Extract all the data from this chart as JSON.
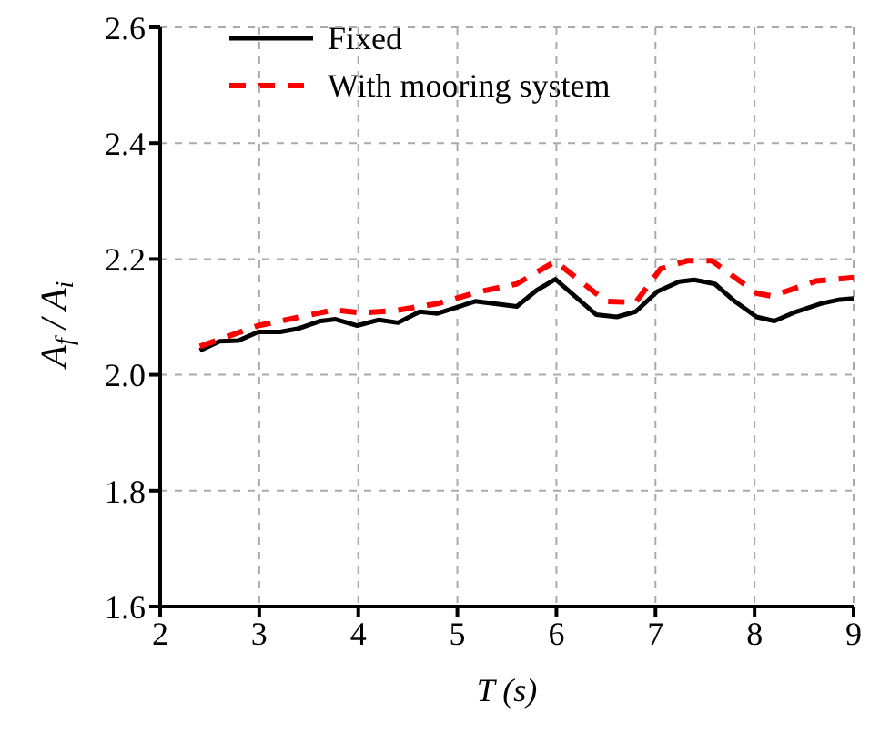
{
  "chart_data": {
    "type": "line",
    "xlabel": "T (s)",
    "ylabel": "A$_{f}$ / A$_{i}$",
    "xlim": [
      2,
      9
    ],
    "xticks": [
      2,
      3,
      4,
      5,
      6,
      7,
      8,
      9
    ],
    "ylim": [
      1.6,
      2.6
    ],
    "yticks": [
      1.6,
      1.8,
      {
        "value": 2,
        "label": "2.0"
      },
      2.2,
      2.4,
      2.6
    ],
    "grid": true,
    "legend": "top left",
    "series": [
      {
        "name": "Fixed",
        "color": "#000000",
        "line_style": "solid",
        "x": [
          2.4,
          2.6,
          2.79,
          2.99,
          3.21,
          3.4,
          3.62,
          3.77,
          3.99,
          4.21,
          4.4,
          4.62,
          4.8,
          5.18,
          5.6,
          5.8,
          5.99,
          6.4,
          6.61,
          6.8,
          7.02,
          7.24,
          7.39,
          7.6,
          7.8,
          8.02,
          8.2,
          8.42,
          8.67,
          8.86,
          9.0
        ],
        "values": [
          2.042,
          2.058,
          2.059,
          2.074,
          2.074,
          2.08,
          2.093,
          2.096,
          2.085,
          2.095,
          2.09,
          2.109,
          2.106,
          2.127,
          2.118,
          2.146,
          2.165,
          2.104,
          2.1,
          2.109,
          2.144,
          2.161,
          2.164,
          2.157,
          2.127,
          2.1,
          2.093,
          2.109,
          2.123,
          2.13,
          2.132
        ]
      },
      {
        "name": "With mooring system",
        "color": "#ff0000",
        "line_style": "dashed",
        "x": [
          2.4,
          2.99,
          3.75,
          4.04,
          4.37,
          4.8,
          5.23,
          5.6,
          5.99,
          6.5,
          6.8,
          7.05,
          7.32,
          7.57,
          8.02,
          8.18,
          8.62,
          9.0
        ],
        "values": [
          2.049,
          2.085,
          2.112,
          2.107,
          2.111,
          2.123,
          2.144,
          2.157,
          2.196,
          2.127,
          2.125,
          2.183,
          2.197,
          2.197,
          2.141,
          2.136,
          2.162,
          2.168
        ]
      }
    ]
  }
}
